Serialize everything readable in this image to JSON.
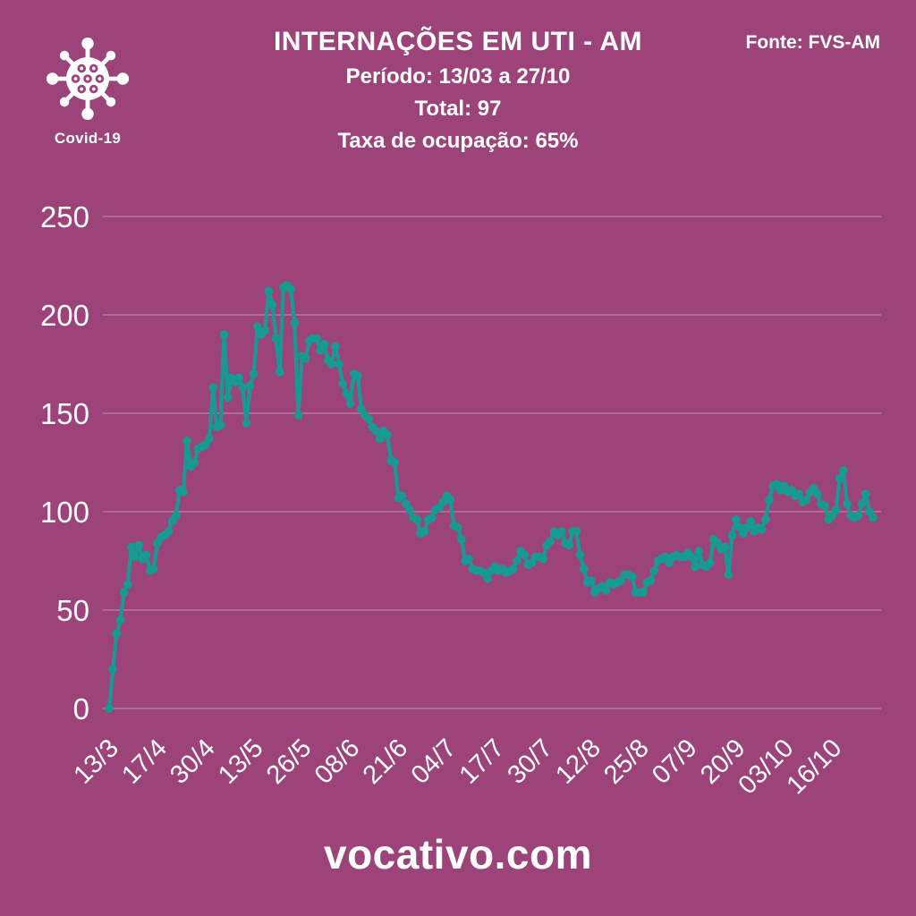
{
  "header": {
    "badge_label": "Covid-19",
    "title": "INTERNAÇÕES EM UTI - AM",
    "subtitle_period": "Período: 13/03 a 27/10",
    "subtitle_total": "Total: 97",
    "subtitle_occupancy": "Taxa de ocupação: 65%",
    "source": "Fonte: FVS-AM"
  },
  "footer": {
    "site": "vocativo.com"
  },
  "colors": {
    "background": "#9c4479",
    "line": "#169a92",
    "grid": "rgba(255,255,255,0.28)",
    "text": "#ffffff"
  },
  "chart_data": {
    "type": "line",
    "title": "INTERNAÇÕES EM UTI - AM",
    "xlabel": "",
    "ylabel": "",
    "ylim": [
      0,
      250
    ],
    "yticks": [
      0,
      50,
      100,
      150,
      200,
      250
    ],
    "grid": true,
    "legend": "none",
    "x_tick_labels": [
      "13/3",
      "17/4",
      "30/4",
      "13/5",
      "26/5",
      "08/6",
      "21/6",
      "04/7",
      "17/7",
      "30/7",
      "12/8",
      "25/8",
      "07/9",
      "20/9",
      "03/10",
      "16/10"
    ],
    "tick_every": 13,
    "period_start": "13/03",
    "period_end": "27/10",
    "last_value": 97,
    "series": [
      {
        "name": "Internações em UTI - AM",
        "values": [
          0,
          20,
          38,
          45,
          59,
          63,
          82,
          77,
          83,
          76,
          78,
          70,
          71,
          84,
          87,
          88,
          90,
          95,
          98,
          111,
          110,
          136,
          123,
          125,
          132,
          133,
          134,
          137,
          163,
          143,
          144,
          190,
          158,
          168,
          166,
          168,
          163,
          145,
          164,
          170,
          194,
          190,
          192,
          212,
          205,
          188,
          171,
          214,
          215,
          213,
          196,
          149,
          179,
          178,
          187,
          188,
          188,
          182,
          185,
          177,
          175,
          184,
          175,
          165,
          160,
          155,
          170,
          169,
          152,
          149,
          147,
          143,
          141,
          137,
          141,
          139,
          126,
          125,
          107,
          108,
          104,
          101,
          97,
          96,
          89,
          90,
          96,
          97,
          101,
          102,
          105,
          108,
          106,
          93,
          92,
          86,
          75,
          76,
          71,
          70,
          70,
          69,
          66,
          70,
          72,
          70,
          71,
          69,
          70,
          71,
          75,
          80,
          78,
          73,
          74,
          77,
          77,
          76,
          83,
          85,
          90,
          88,
          90,
          84,
          83,
          90,
          90,
          78,
          71,
          64,
          65,
          59,
          61,
          62,
          60,
          64,
          63,
          64,
          65,
          68,
          68,
          67,
          59,
          59,
          59,
          64,
          65,
          70,
          75,
          76,
          77,
          74,
          77,
          78,
          77,
          77,
          79,
          77,
          72,
          80,
          73,
          72,
          74,
          86,
          84,
          81,
          82,
          68,
          88,
          96,
          92,
          89,
          92,
          95,
          90,
          92,
          91,
          96,
          106,
          113,
          114,
          111,
          113,
          110,
          111,
          108,
          109,
          105,
          106,
          110,
          112,
          109,
          104,
          103,
          96,
          98,
          101,
          117,
          121,
          104,
          98,
          97,
          98,
          104,
          109,
          100,
          97
        ]
      }
    ]
  }
}
